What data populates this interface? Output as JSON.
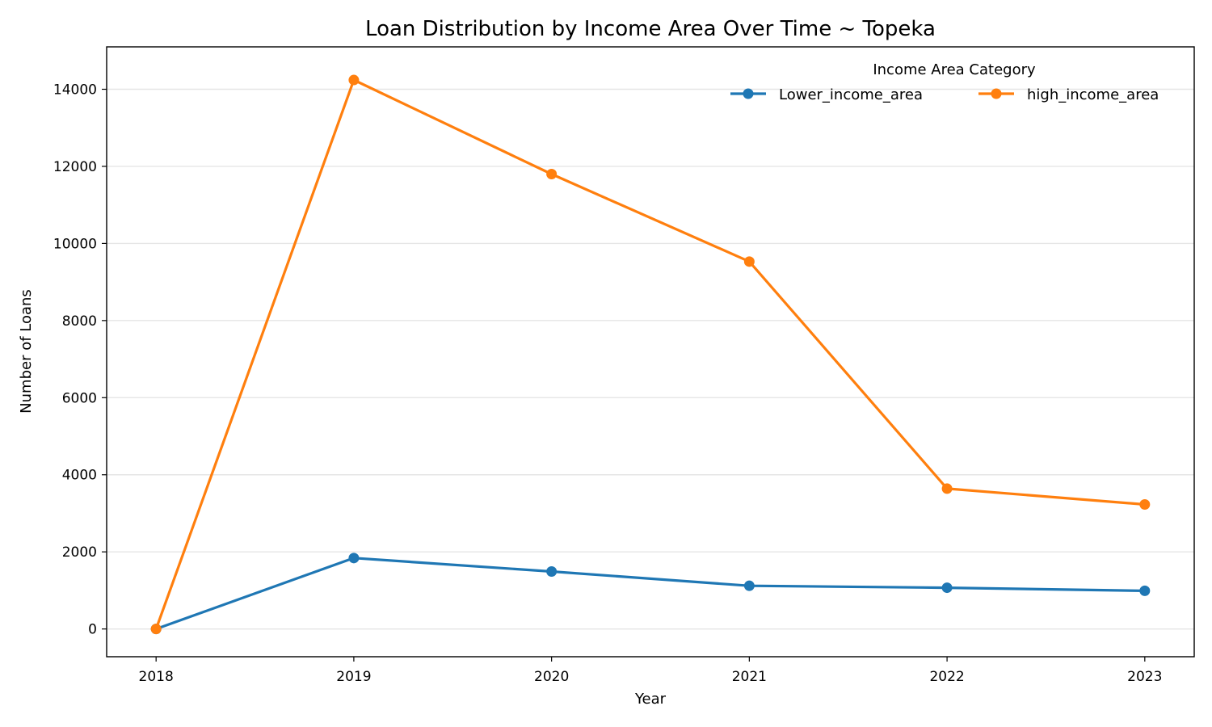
{
  "chart_data": {
    "type": "line",
    "title": "Loan Distribution by Income Area Over Time ~ Topeka",
    "xlabel": "Year",
    "ylabel": "Number of Loans",
    "x": [
      2018,
      2019,
      2020,
      2021,
      2022,
      2023
    ],
    "x_tick_labels": [
      "2018",
      "2019",
      "2020",
      "2021",
      "2022",
      "2023"
    ],
    "y_ticks": [
      0,
      2000,
      4000,
      6000,
      8000,
      10000,
      12000,
      14000
    ],
    "y_tick_labels": [
      "0",
      "2000",
      "4000",
      "6000",
      "8000",
      "10000",
      "12000",
      "14000"
    ],
    "ylim": [
      -720,
      15100
    ],
    "xlim": [
      2017.75,
      2023.25
    ],
    "grid": "horizontal",
    "legend": {
      "title": "Income Area Category",
      "placement": "top-right"
    },
    "series": [
      {
        "name": "Lower_income_area",
        "color": "#1f77b4",
        "values": [
          0,
          1840,
          1490,
          1120,
          1070,
          990
        ]
      },
      {
        "name": "high_income_area",
        "color": "#ff7f0e",
        "values": [
          0,
          14240,
          11800,
          9530,
          3640,
          3230
        ]
      }
    ]
  }
}
